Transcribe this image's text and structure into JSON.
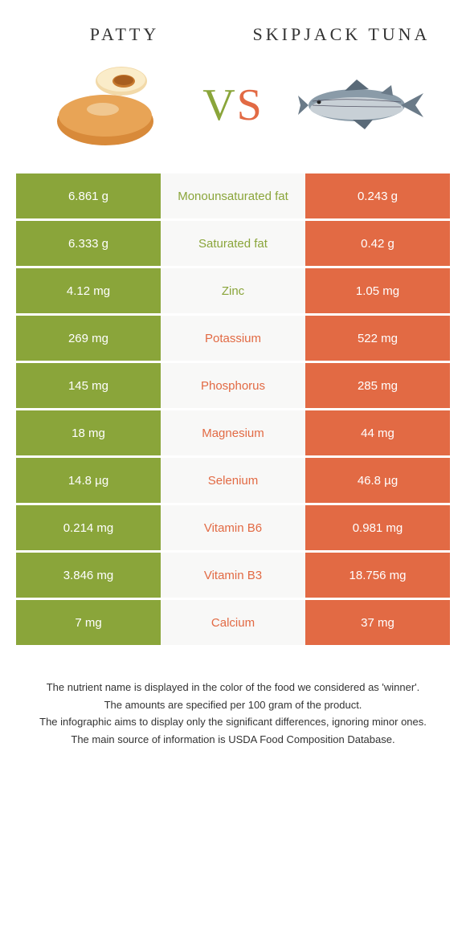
{
  "colors": {
    "green": "#8aa53a",
    "orange": "#e26a44",
    "mid_bg": "#f8f8f7",
    "mid_text_green": "#8aa53a",
    "mid_text_orange": "#e26a44"
  },
  "header": {
    "left_title": "Patty",
    "right_title": "Skipjack Tuna",
    "vs_v": "V",
    "vs_s": "S"
  },
  "rows": [
    {
      "left": "6.861 g",
      "mid": "Monounsaturated fat",
      "right": "0.243 g",
      "winner": "left"
    },
    {
      "left": "6.333 g",
      "mid": "Saturated fat",
      "right": "0.42 g",
      "winner": "left"
    },
    {
      "left": "4.12 mg",
      "mid": "Zinc",
      "right": "1.05 mg",
      "winner": "left"
    },
    {
      "left": "269 mg",
      "mid": "Potassium",
      "right": "522 mg",
      "winner": "right"
    },
    {
      "left": "145 mg",
      "mid": "Phosphorus",
      "right": "285 mg",
      "winner": "right"
    },
    {
      "left": "18 mg",
      "mid": "Magnesium",
      "right": "44 mg",
      "winner": "right"
    },
    {
      "left": "14.8 µg",
      "mid": "Selenium",
      "right": "46.8 µg",
      "winner": "right"
    },
    {
      "left": "0.214 mg",
      "mid": "Vitamin B6",
      "right": "0.981 mg",
      "winner": "right"
    },
    {
      "left": "3.846 mg",
      "mid": "Vitamin B3",
      "right": "18.756 mg",
      "winner": "right"
    },
    {
      "left": "7 mg",
      "mid": "Calcium",
      "right": "37 mg",
      "winner": "right"
    }
  ],
  "footer": {
    "line1": "The nutrient name is displayed in the color of the food we considered as 'winner'.",
    "line2": "The amounts are specified per 100 gram of the product.",
    "line3": "The infographic aims to display only the significant differences, ignoring minor ones.",
    "line4": "The main source of information is USDA Food Composition Database."
  }
}
